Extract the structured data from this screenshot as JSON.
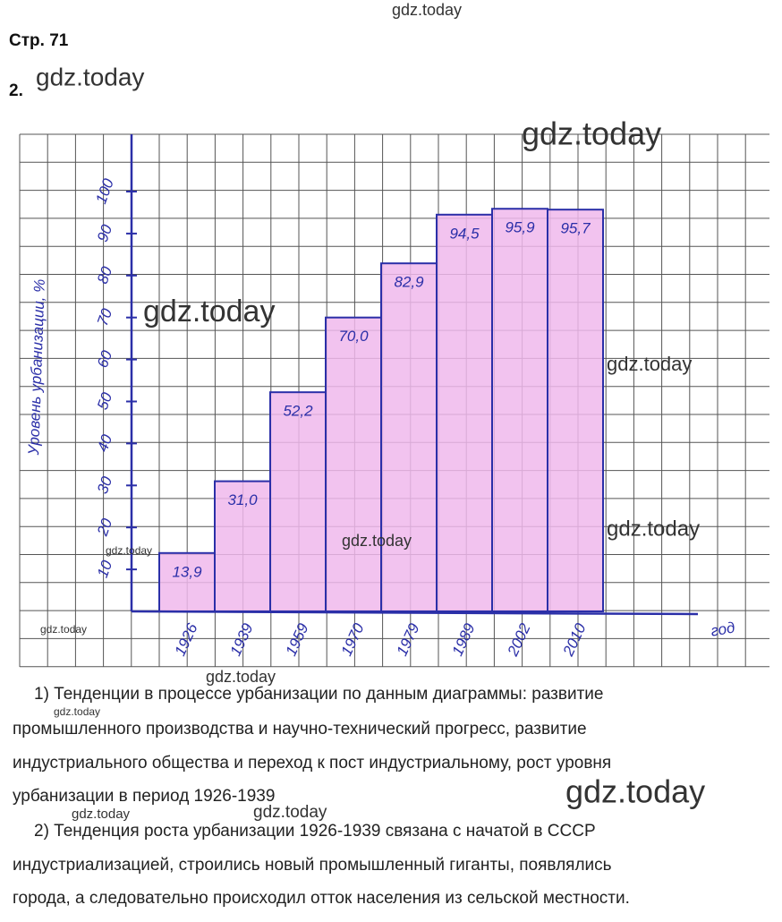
{
  "header": {
    "page": "Стр. 71",
    "task": "2."
  },
  "chart_data": {
    "type": "bar",
    "y_label": "Уровень урбанизации, %",
    "x_label": "год",
    "categories": [
      "1926",
      "1939",
      "1959",
      "1970",
      "1979",
      "1989",
      "2002",
      "2010"
    ],
    "values": [
      13.9,
      31.0,
      52.2,
      70.0,
      82.9,
      94.5,
      95.9,
      95.7
    ],
    "value_labels": [
      "13,9",
      "31,0",
      "52,2",
      "70,0",
      "82,9",
      "94,5",
      "95,9",
      "95,7"
    ],
    "color": "#f0b8ec",
    "ylim": [
      0,
      110
    ],
    "yticks": [
      10,
      20,
      30,
      40,
      50,
      60,
      70,
      80,
      90,
      100
    ]
  },
  "paragraphs": [
    [
      "1) Тенденции в процессе урбанизации по данным диаграммы: развитие",
      "промышленного производства и научно-технический прогресс, развитие",
      "индустриального общества и переход к пост индустриальному, рост уровня",
      "урбанизации в период 1926-1939"
    ],
    [
      "2) Тенденция роста урбанизации 1926-1939 связана с начатой в СССР",
      "индустриализацией, строились новый промышленный гиганты, появлялись",
      "города, а следовательно происходил отток населения из сельской местности."
    ]
  ],
  "watermarks": [
    "gdz.today",
    "gdz.today",
    "gdz.today",
    "gdz.today",
    "gdz.today",
    "gdz.today",
    "gdz.today",
    "gdz.today",
    "gdz.today",
    "gdz.today",
    "gdz.today",
    "gdz.today",
    "gdz.today",
    "gdz.today"
  ]
}
